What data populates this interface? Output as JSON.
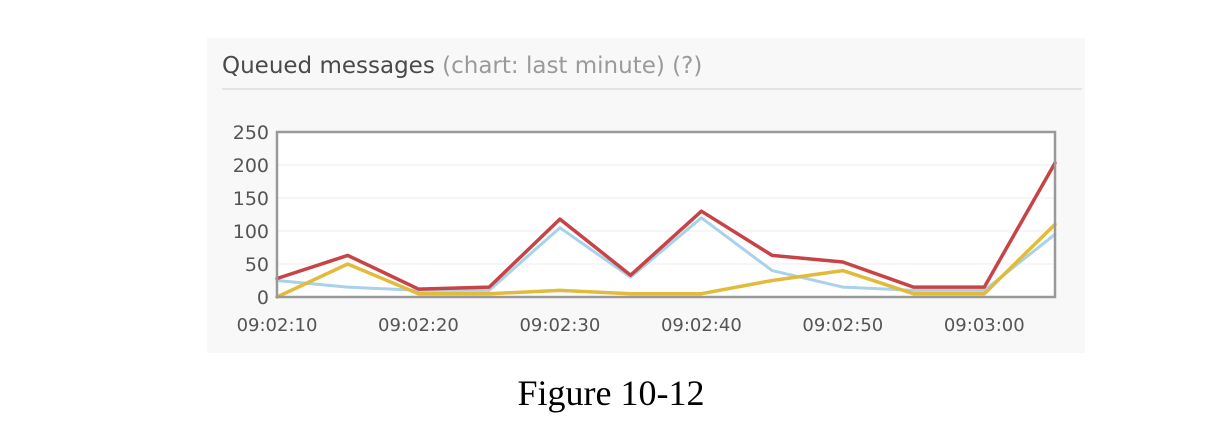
{
  "header": {
    "title": "Queued messages",
    "subtitle": "(chart: last minute)",
    "help": "(?)"
  },
  "caption": "Figure 10-12",
  "chart_data": {
    "type": "line",
    "title": "Queued messages",
    "x": [
      "09:02:10",
      "09:02:15",
      "09:02:20",
      "09:02:25",
      "09:02:30",
      "09:02:35",
      "09:02:40",
      "09:02:45",
      "09:02:50",
      "09:02:55",
      "09:03:00",
      "09:03:05"
    ],
    "x_tick_labels": [
      "09:02:10",
      "09:02:20",
      "09:02:30",
      "09:02:40",
      "09:02:50",
      "09:03:00"
    ],
    "y_ticks": [
      0,
      50,
      100,
      150,
      200,
      250
    ],
    "ylim": [
      0,
      250
    ],
    "grid": true,
    "series": [
      {
        "color": "#a8d2ec",
        "values": [
          25,
          15,
          10,
          10,
          105,
          30,
          120,
          40,
          15,
          10,
          10,
          95
        ]
      },
      {
        "color": "#e2bb3a",
        "values": [
          0,
          50,
          5,
          5,
          10,
          5,
          5,
          25,
          40,
          5,
          5,
          110
        ]
      },
      {
        "color": "#c84345",
        "values": [
          28,
          63,
          12,
          15,
          118,
          33,
          130,
          63,
          53,
          15,
          15,
          203
        ]
      }
    ]
  }
}
